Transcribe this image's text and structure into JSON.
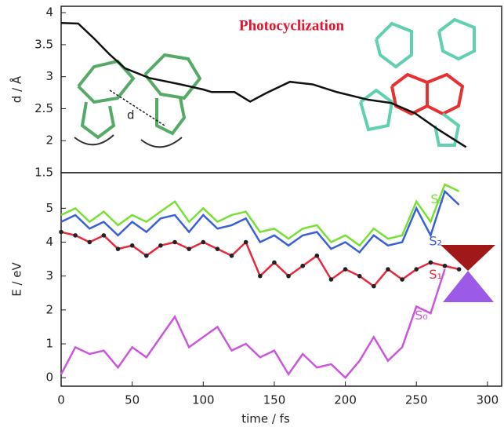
{
  "chart_data": [
    {
      "type": "line",
      "title": "Photocyclization",
      "annotation": "d",
      "ylabel": "d / Å",
      "x": [
        0,
        12,
        23,
        34,
        45,
        62,
        84,
        100,
        106,
        122,
        133,
        144,
        161,
        177,
        194,
        216,
        232,
        249,
        265,
        285
      ],
      "series": [
        {
          "name": null,
          "color": "#111111",
          "values": [
            3.84,
            3.83,
            3.6,
            3.35,
            3.13,
            2.98,
            2.88,
            2.8,
            2.76,
            2.76,
            2.61,
            2.74,
            2.92,
            2.88,
            2.76,
            2.64,
            2.59,
            2.43,
            2.18,
            1.9
          ]
        }
      ],
      "xlim": [
        0,
        310
      ],
      "ylim": [
        1.5,
        4.1
      ],
      "yticks": [
        1.5,
        2,
        2.5,
        3,
        3.5,
        4
      ]
    },
    {
      "type": "line",
      "xlabel": "time / fs",
      "ylabel": "E / eV",
      "x": [
        0,
        10,
        20,
        30,
        40,
        50,
        60,
        70,
        80,
        90,
        100,
        110,
        120,
        130,
        140,
        150,
        160,
        170,
        180,
        190,
        200,
        210,
        220,
        230,
        240,
        250,
        260,
        270,
        280
      ],
      "series": [
        {
          "name": "S₃",
          "color": "#77e033",
          "values": [
            4.8,
            5.0,
            4.6,
            4.9,
            4.5,
            4.8,
            4.6,
            4.9,
            5.2,
            4.6,
            5.0,
            4.6,
            4.8,
            4.9,
            4.3,
            4.4,
            4.1,
            4.4,
            4.5,
            4.0,
            4.2,
            3.9,
            4.4,
            4.1,
            4.2,
            5.2,
            4.6,
            5.7,
            5.5
          ]
        },
        {
          "name": "S₂",
          "color": "#3b5fd9",
          "values": [
            4.6,
            4.8,
            4.4,
            4.6,
            4.2,
            4.6,
            4.3,
            4.7,
            4.8,
            4.3,
            4.8,
            4.4,
            4.5,
            4.7,
            4.0,
            4.2,
            3.9,
            4.2,
            4.3,
            3.8,
            4.0,
            3.7,
            4.2,
            3.9,
            4.0,
            5.0,
            4.2,
            5.5,
            5.1
          ]
        },
        {
          "name": "S₁",
          "color": "#e8283c",
          "markers": "#222222",
          "values": [
            4.3,
            4.2,
            4.0,
            4.2,
            3.8,
            3.9,
            3.6,
            3.9,
            4.0,
            3.8,
            4.0,
            3.8,
            3.6,
            4.0,
            3.0,
            3.4,
            3.0,
            3.3,
            3.6,
            2.9,
            3.2,
            3.0,
            2.7,
            3.2,
            2.9,
            3.2,
            3.4,
            3.3,
            3.2
          ]
        },
        {
          "name": "S₀",
          "color": "#cc55dd",
          "values": [
            0.1,
            0.9,
            0.7,
            0.8,
            0.3,
            0.9,
            0.6,
            1.2,
            1.8,
            0.9,
            1.2,
            1.5,
            0.8,
            1.0,
            0.6,
            0.8,
            0.1,
            0.7,
            0.3,
            0.4,
            0.0,
            0.5,
            1.2,
            0.5,
            0.9,
            2.1,
            1.9,
            3.2,
            null
          ]
        }
      ],
      "xlim": [
        0,
        310
      ],
      "ylim": [
        -0.25,
        6.05
      ],
      "xticks": [
        0,
        50,
        100,
        150,
        200,
        250,
        300
      ],
      "yticks": [
        0,
        1,
        2,
        3,
        4,
        5
      ]
    }
  ]
}
